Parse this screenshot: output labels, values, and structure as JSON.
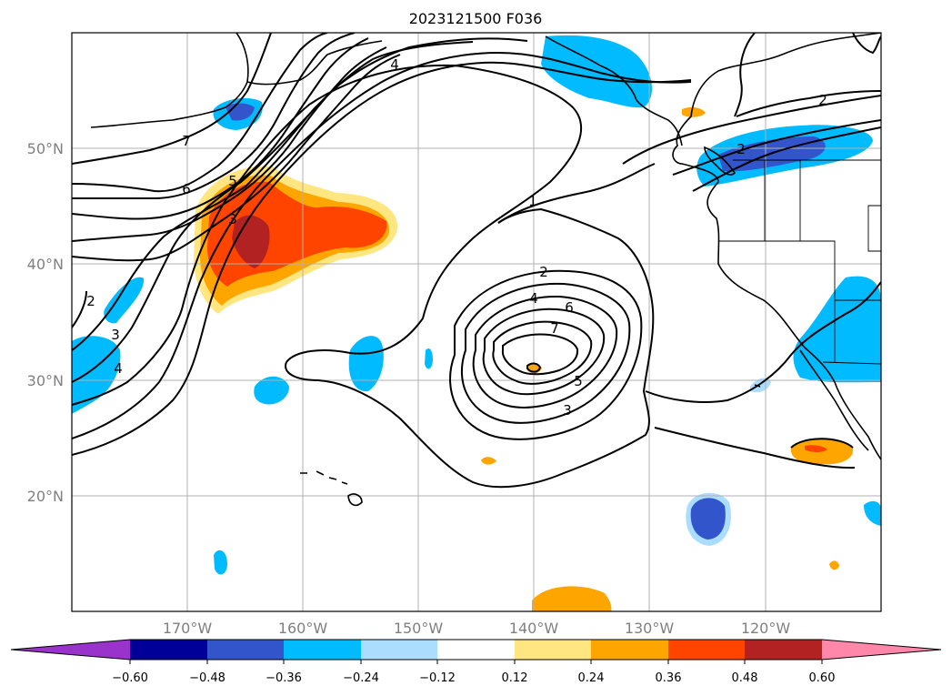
{
  "map": {
    "title": "2023121500 F036",
    "lat_labels": [
      "50°N",
      "40°N",
      "30°N",
      "20°N"
    ],
    "lon_labels": [
      "170°W",
      "160°W",
      "150°W",
      "140°W",
      "130°W",
      "120°W"
    ],
    "contour_labels": [
      "1",
      "2",
      "3",
      "4",
      "5",
      "6",
      "7",
      "2",
      "3",
      "4",
      "5",
      "6",
      "7",
      "3",
      "4",
      "2",
      "2",
      "3",
      "4"
    ],
    "colorbar": {
      "labels": [
        "−0.60",
        "−0.48",
        "−0.36",
        "−0.24",
        "−0.12",
        "0.12",
        "0.24",
        "0.36",
        "0.48",
        "0.60"
      ],
      "colors": [
        "#9933cc",
        "#000099",
        "#3355cc",
        "#00bbff",
        "#aaddff",
        "#ffffff",
        "#ffe680",
        "#ffa500",
        "#ff4400",
        "#b22222",
        "#ff88aa"
      ]
    }
  }
}
